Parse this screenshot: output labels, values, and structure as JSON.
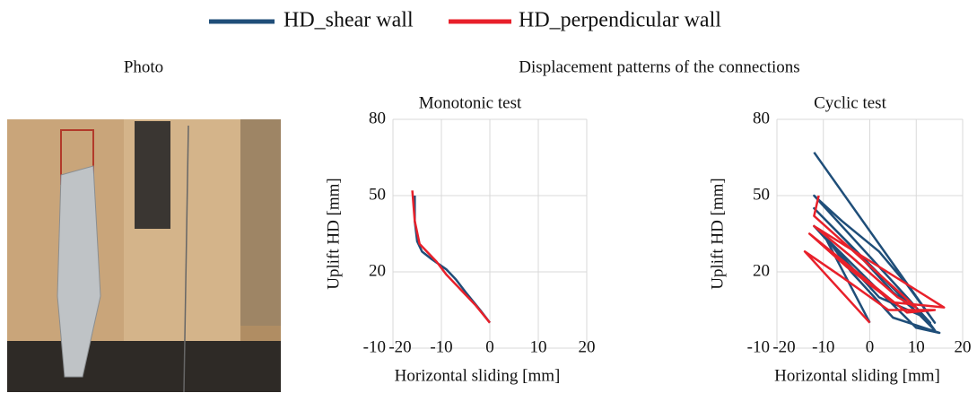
{
  "labels": {
    "photo": "Photo",
    "patterns": "Displacement patterns of the connections"
  },
  "chart_data": [
    {
      "type": "line",
      "title": "Monotonic test",
      "x_label": "Horizontal sliding [mm]",
      "y_label": "Uplift HD [mm]",
      "xlim": [
        -20,
        20
      ],
      "xticks": [
        -20,
        -10,
        0,
        10,
        20
      ],
      "ylim": [
        -10,
        80
      ],
      "yticks": [
        -10,
        20,
        50,
        80
      ],
      "grid": true,
      "series": [
        {
          "name": "HD_shear wall",
          "color": "#1f4e79",
          "x": [
            0,
            -2,
            -5,
            -7,
            -9,
            -12,
            -14,
            -15,
            -15.5,
            -15.5
          ],
          "values": [
            0,
            5,
            12,
            17,
            21,
            25,
            28,
            32,
            40,
            50
          ]
        },
        {
          "name": "HD_perpendicular wall",
          "color": "#e8202a",
          "x": [
            0,
            -3,
            -6,
            -9,
            -11,
            -13,
            -14.5,
            -15.5,
            -16
          ],
          "values": [
            0,
            7,
            13,
            19,
            24,
            28,
            31,
            40,
            52
          ]
        }
      ]
    },
    {
      "type": "line",
      "title": "Cyclic test",
      "x_label": "Horizontal sliding [mm]",
      "y_label": "Uplift HD [mm]",
      "xlim": [
        -20,
        20
      ],
      "xticks": [
        -20,
        -10,
        0,
        10,
        20
      ],
      "ylim": [
        -10,
        80
      ],
      "yticks": [
        -10,
        20,
        50,
        80
      ],
      "grid": true,
      "series": [
        {
          "name": "HD_shear wall",
          "color": "#1f4e79",
          "x": [
            0,
            -10,
            -4,
            5,
            15,
            10,
            -12,
            -8,
            2,
            12,
            14,
            -12,
            -5,
            5,
            13,
            -12,
            -6,
            2,
            8,
            14,
            -12
          ],
          "values": [
            0,
            35,
            20,
            2,
            -4,
            -2,
            38,
            30,
            10,
            2,
            -3,
            45,
            32,
            12,
            0,
            50,
            40,
            28,
            15,
            0,
            67
          ]
        },
        {
          "name": "HD_perpendicular wall",
          "color": "#e8202a",
          "x": [
            0,
            -14,
            -6,
            4,
            14,
            8,
            -13,
            -5,
            5,
            16,
            -12,
            -4,
            6,
            10,
            -12,
            -11
          ],
          "values": [
            0,
            28,
            18,
            5,
            5,
            4,
            35,
            22,
            8,
            6,
            38,
            26,
            10,
            6,
            42,
            50
          ]
        }
      ]
    }
  ]
}
